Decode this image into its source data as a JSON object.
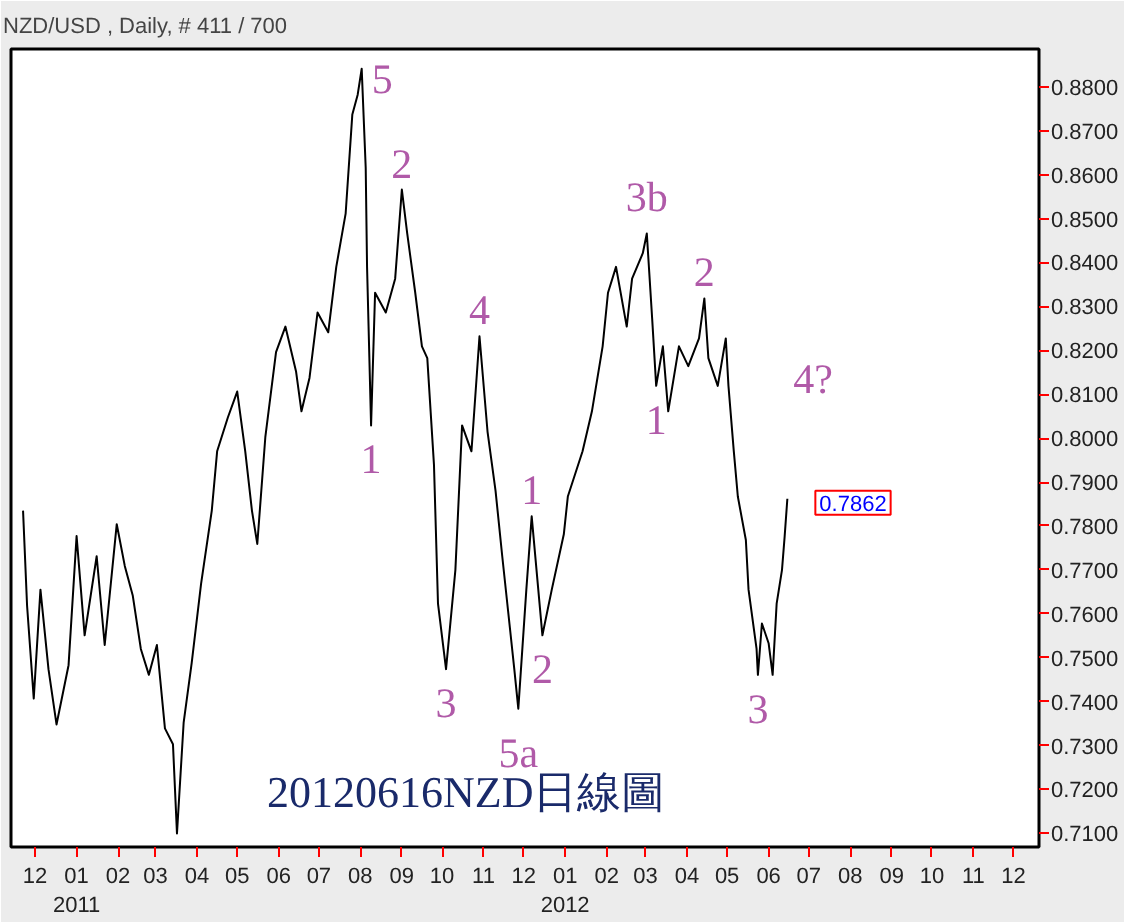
{
  "chart_data": {
    "type": "line",
    "title": "NZD/USD , Daily, # 411 / 700",
    "x": [
      "2010-11-22",
      "2010-11-25",
      "2010-11-30",
      "2010-12-05",
      "2010-12-11",
      "2010-12-17",
      "2010-12-26",
      "2011-01-01",
      "2011-01-07",
      "2011-01-16",
      "2011-01-22",
      "2011-01-31",
      "2011-02-06",
      "2011-02-12",
      "2011-02-18",
      "2011-02-24",
      "2011-03-02",
      "2011-03-08",
      "2011-03-14",
      "2011-03-17",
      "2011-03-22",
      "2011-03-28",
      "2011-04-04",
      "2011-04-12",
      "2011-04-16",
      "2011-04-24",
      "2011-05-01",
      "2011-05-07",
      "2011-05-12",
      "2011-05-16",
      "2011-05-22",
      "2011-05-30",
      "2011-06-06",
      "2011-06-14",
      "2011-06-18",
      "2011-06-24",
      "2011-06-30",
      "2011-07-08",
      "2011-07-14",
      "2011-07-21",
      "2011-07-26",
      "2011-07-30",
      "2011-08-02",
      "2011-08-05",
      "2011-08-06",
      "2011-08-09",
      "2011-08-12",
      "2011-08-20",
      "2011-08-27",
      "2011-09-01",
      "2011-09-05",
      "2011-09-11",
      "2011-09-16",
      "2011-09-20",
      "2011-09-25",
      "2011-09-28",
      "2011-10-04",
      "2011-10-11",
      "2011-10-16",
      "2011-10-23",
      "2011-10-29",
      "2011-11-04",
      "2011-11-10",
      "2011-11-15",
      "2011-11-24",
      "2011-11-27",
      "2011-12-03",
      "2011-12-07",
      "2011-12-15",
      "2011-12-22",
      "2011-12-31",
      "2012-01-03",
      "2012-01-14",
      "2012-01-21",
      "2012-01-29",
      "2012-02-02",
      "2012-02-08",
      "2012-02-16",
      "2012-02-20",
      "2012-02-28",
      "2012-03-02",
      "2012-03-06",
      "2012-03-09",
      "2012-03-14",
      "2012-03-18",
      "2012-03-26",
      "2012-04-02",
      "2012-04-10",
      "2012-04-14",
      "2012-04-17",
      "2012-04-24",
      "2012-04-30",
      "2012-05-02",
      "2012-05-06",
      "2012-05-09",
      "2012-05-15",
      "2012-05-17",
      "2012-05-23",
      "2012-05-24",
      "2012-05-27",
      "2012-06-01",
      "2012-06-04",
      "2012-06-07",
      "2012-06-11",
      "2012-06-13",
      "2012-06-15"
    ],
    "series": [
      {
        "color": "#000000",
        "values": [
          0.7835,
          0.7619,
          0.7407,
          0.7655,
          0.7474,
          0.7348,
          0.7483,
          0.7777,
          0.7551,
          0.7731,
          0.7529,
          0.7804,
          0.7709,
          0.7641,
          0.752,
          0.7461,
          0.7529,
          0.7339,
          0.7303,
          0.71,
          0.7353,
          0.7488,
          0.7668,
          0.7835,
          0.797,
          0.8047,
          0.8106,
          0.797,
          0.7835,
          0.7759,
          0.8002,
          0.8196,
          0.8254,
          0.8151,
          0.8061,
          0.8137,
          0.8286,
          0.8241,
          0.839,
          0.8511,
          0.8737,
          0.8782,
          0.8841,
          0.8615,
          0.839,
          0.8029,
          0.8331,
          0.8286,
          0.8363,
          0.8566,
          0.8466,
          0.8331,
          0.8209,
          0.8182,
          0.7939,
          0.7623,
          0.7474,
          0.77,
          0.8029,
          0.797,
          0.8232,
          0.8015,
          0.788,
          0.7731,
          0.7474,
          0.7384,
          0.7655,
          0.7822,
          0.7551,
          0.7655,
          0.7781,
          0.7867,
          0.797,
          0.8061,
          0.8209,
          0.8331,
          0.839,
          0.8254,
          0.8363,
          0.8421,
          0.8466,
          0.8272,
          0.8119,
          0.8209,
          0.8061,
          0.8209,
          0.8164,
          0.8227,
          0.8318,
          0.8182,
          0.8119,
          0.8227,
          0.8119,
          0.797,
          0.7867,
          0.7768,
          0.7655,
          0.752,
          0.7461,
          0.7578,
          0.7533,
          0.7461,
          0.7623,
          0.77,
          0.7777,
          0.7862
        ]
      }
    ],
    "xlim": [
      "2010-11-13",
      "2012-12-20"
    ],
    "xticks": [
      {
        "value": "2010-12-01",
        "label": "12"
      },
      {
        "value": "2011-01-01",
        "label": "01\n2011"
      },
      {
        "value": "2011-02-01",
        "label": "02"
      },
      {
        "value": "2011-03-01",
        "label": "03"
      },
      {
        "value": "2011-04-01",
        "label": "04"
      },
      {
        "value": "2011-05-01",
        "label": "05"
      },
      {
        "value": "2011-06-01",
        "label": "06"
      },
      {
        "value": "2011-07-01",
        "label": "07"
      },
      {
        "value": "2011-08-01",
        "label": "08"
      },
      {
        "value": "2011-09-01",
        "label": "09"
      },
      {
        "value": "2011-10-01",
        "label": "10"
      },
      {
        "value": "2011-11-01",
        "label": "11"
      },
      {
        "value": "2011-12-01",
        "label": "12"
      },
      {
        "value": "2012-01-01",
        "label": "01\n2012"
      },
      {
        "value": "2012-02-01",
        "label": "02"
      },
      {
        "value": "2012-03-01",
        "label": "03"
      },
      {
        "value": "2012-04-01",
        "label": "04"
      },
      {
        "value": "2012-05-01",
        "label": "05"
      },
      {
        "value": "2012-06-01",
        "label": "06"
      },
      {
        "value": "2012-07-01",
        "label": "07"
      },
      {
        "value": "2012-08-01",
        "label": "08"
      },
      {
        "value": "2012-09-01",
        "label": "09"
      },
      {
        "value": "2012-10-01",
        "label": "10"
      },
      {
        "value": "2012-11-01",
        "label": "11"
      },
      {
        "value": "2012-12-01",
        "label": "12"
      }
    ],
    "ylim": [
      0.7069,
      0.8886
    ],
    "yticks": [
      {
        "value": 0.71,
        "label": "0.7100"
      },
      {
        "value": 0.72,
        "label": "0.7200"
      },
      {
        "value": 0.73,
        "label": "0.7300"
      },
      {
        "value": 0.74,
        "label": "0.7400"
      },
      {
        "value": 0.75,
        "label": "0.7500"
      },
      {
        "value": 0.76,
        "label": "0.7600"
      },
      {
        "value": 0.77,
        "label": "0.7700"
      },
      {
        "value": 0.78,
        "label": "0.7800"
      },
      {
        "value": 0.79,
        "label": "0.7900"
      },
      {
        "value": 0.8,
        "label": "0.8000"
      },
      {
        "value": 0.81,
        "label": "0.8100"
      },
      {
        "value": 0.82,
        "label": "0.8200"
      },
      {
        "value": 0.83,
        "label": "0.8300"
      },
      {
        "value": 0.84,
        "label": "0.8400"
      },
      {
        "value": 0.85,
        "label": "0.8500"
      },
      {
        "value": 0.86,
        "label": "0.8600"
      },
      {
        "value": 0.87,
        "label": "0.8700"
      },
      {
        "value": 0.88,
        "label": "0.8800"
      }
    ],
    "annotations": [
      {
        "text": "5",
        "x": "2011-08-02",
        "y": 0.8841
      },
      {
        "text": "2",
        "x": "2011-09-01",
        "y": 0.8566
      },
      {
        "text": "1",
        "x": "2011-08-09",
        "y": 0.8029
      },
      {
        "text": "4",
        "x": "2011-10-29",
        "y": 0.8232
      },
      {
        "text": "3",
        "x": "2011-10-04",
        "y": 0.7474
      },
      {
        "text": "5a",
        "x": "2011-11-27",
        "y": 0.7384
      },
      {
        "text": "1",
        "x": "2011-12-07",
        "y": 0.7822
      },
      {
        "text": "2",
        "x": "2011-12-15",
        "y": 0.7551
      },
      {
        "text": "3b",
        "x": "2012-03-02",
        "y": 0.8466
      },
      {
        "text": "2",
        "x": "2012-04-14",
        "y": 0.8318
      },
      {
        "text": "1",
        "x": "2012-03-09",
        "y": 0.8119
      },
      {
        "text": "3",
        "x": "2012-05-24",
        "y": 0.7461
      },
      {
        "text": "0.7862",
        "x": "2012-06-15",
        "y": 0.7862
      },
      "4?",
      "20120616NZD日線圖"
    ],
    "grid": false
  }
}
